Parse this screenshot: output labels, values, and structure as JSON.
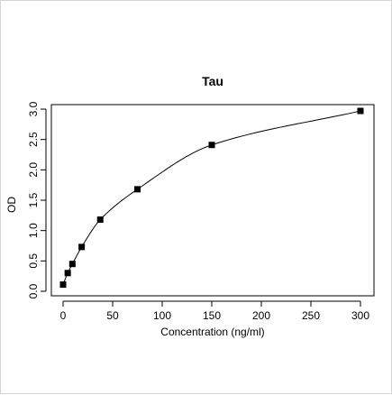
{
  "chart_data": {
    "type": "scatter",
    "title": "Tau",
    "xlabel": "Concentration (ng/ml)",
    "ylabel": "OD",
    "xlim": [
      0,
      300
    ],
    "ylim": [
      0,
      3.0
    ],
    "x_ticks": [
      0,
      50,
      100,
      150,
      200,
      250,
      300
    ],
    "y_ticks": [
      0.0,
      0.5,
      1.0,
      1.5,
      2.0,
      2.5,
      3.0
    ],
    "x_tick_labels": [
      "0",
      "50",
      "100",
      "150",
      "200",
      "250",
      "300"
    ],
    "y_tick_labels": [
      "0.0",
      "0.5",
      "1.0",
      "1.5",
      "2.0",
      "2.5",
      "3.0"
    ],
    "grid": false,
    "series": [
      {
        "marker": "square",
        "color": "#000000",
        "x": [
          0,
          4.69,
          9.38,
          18.75,
          37.5,
          75,
          150,
          300
        ],
        "y": [
          0.11,
          0.3,
          0.45,
          0.73,
          1.18,
          1.68,
          2.41,
          2.97
        ],
        "fit": "curve"
      }
    ]
  }
}
